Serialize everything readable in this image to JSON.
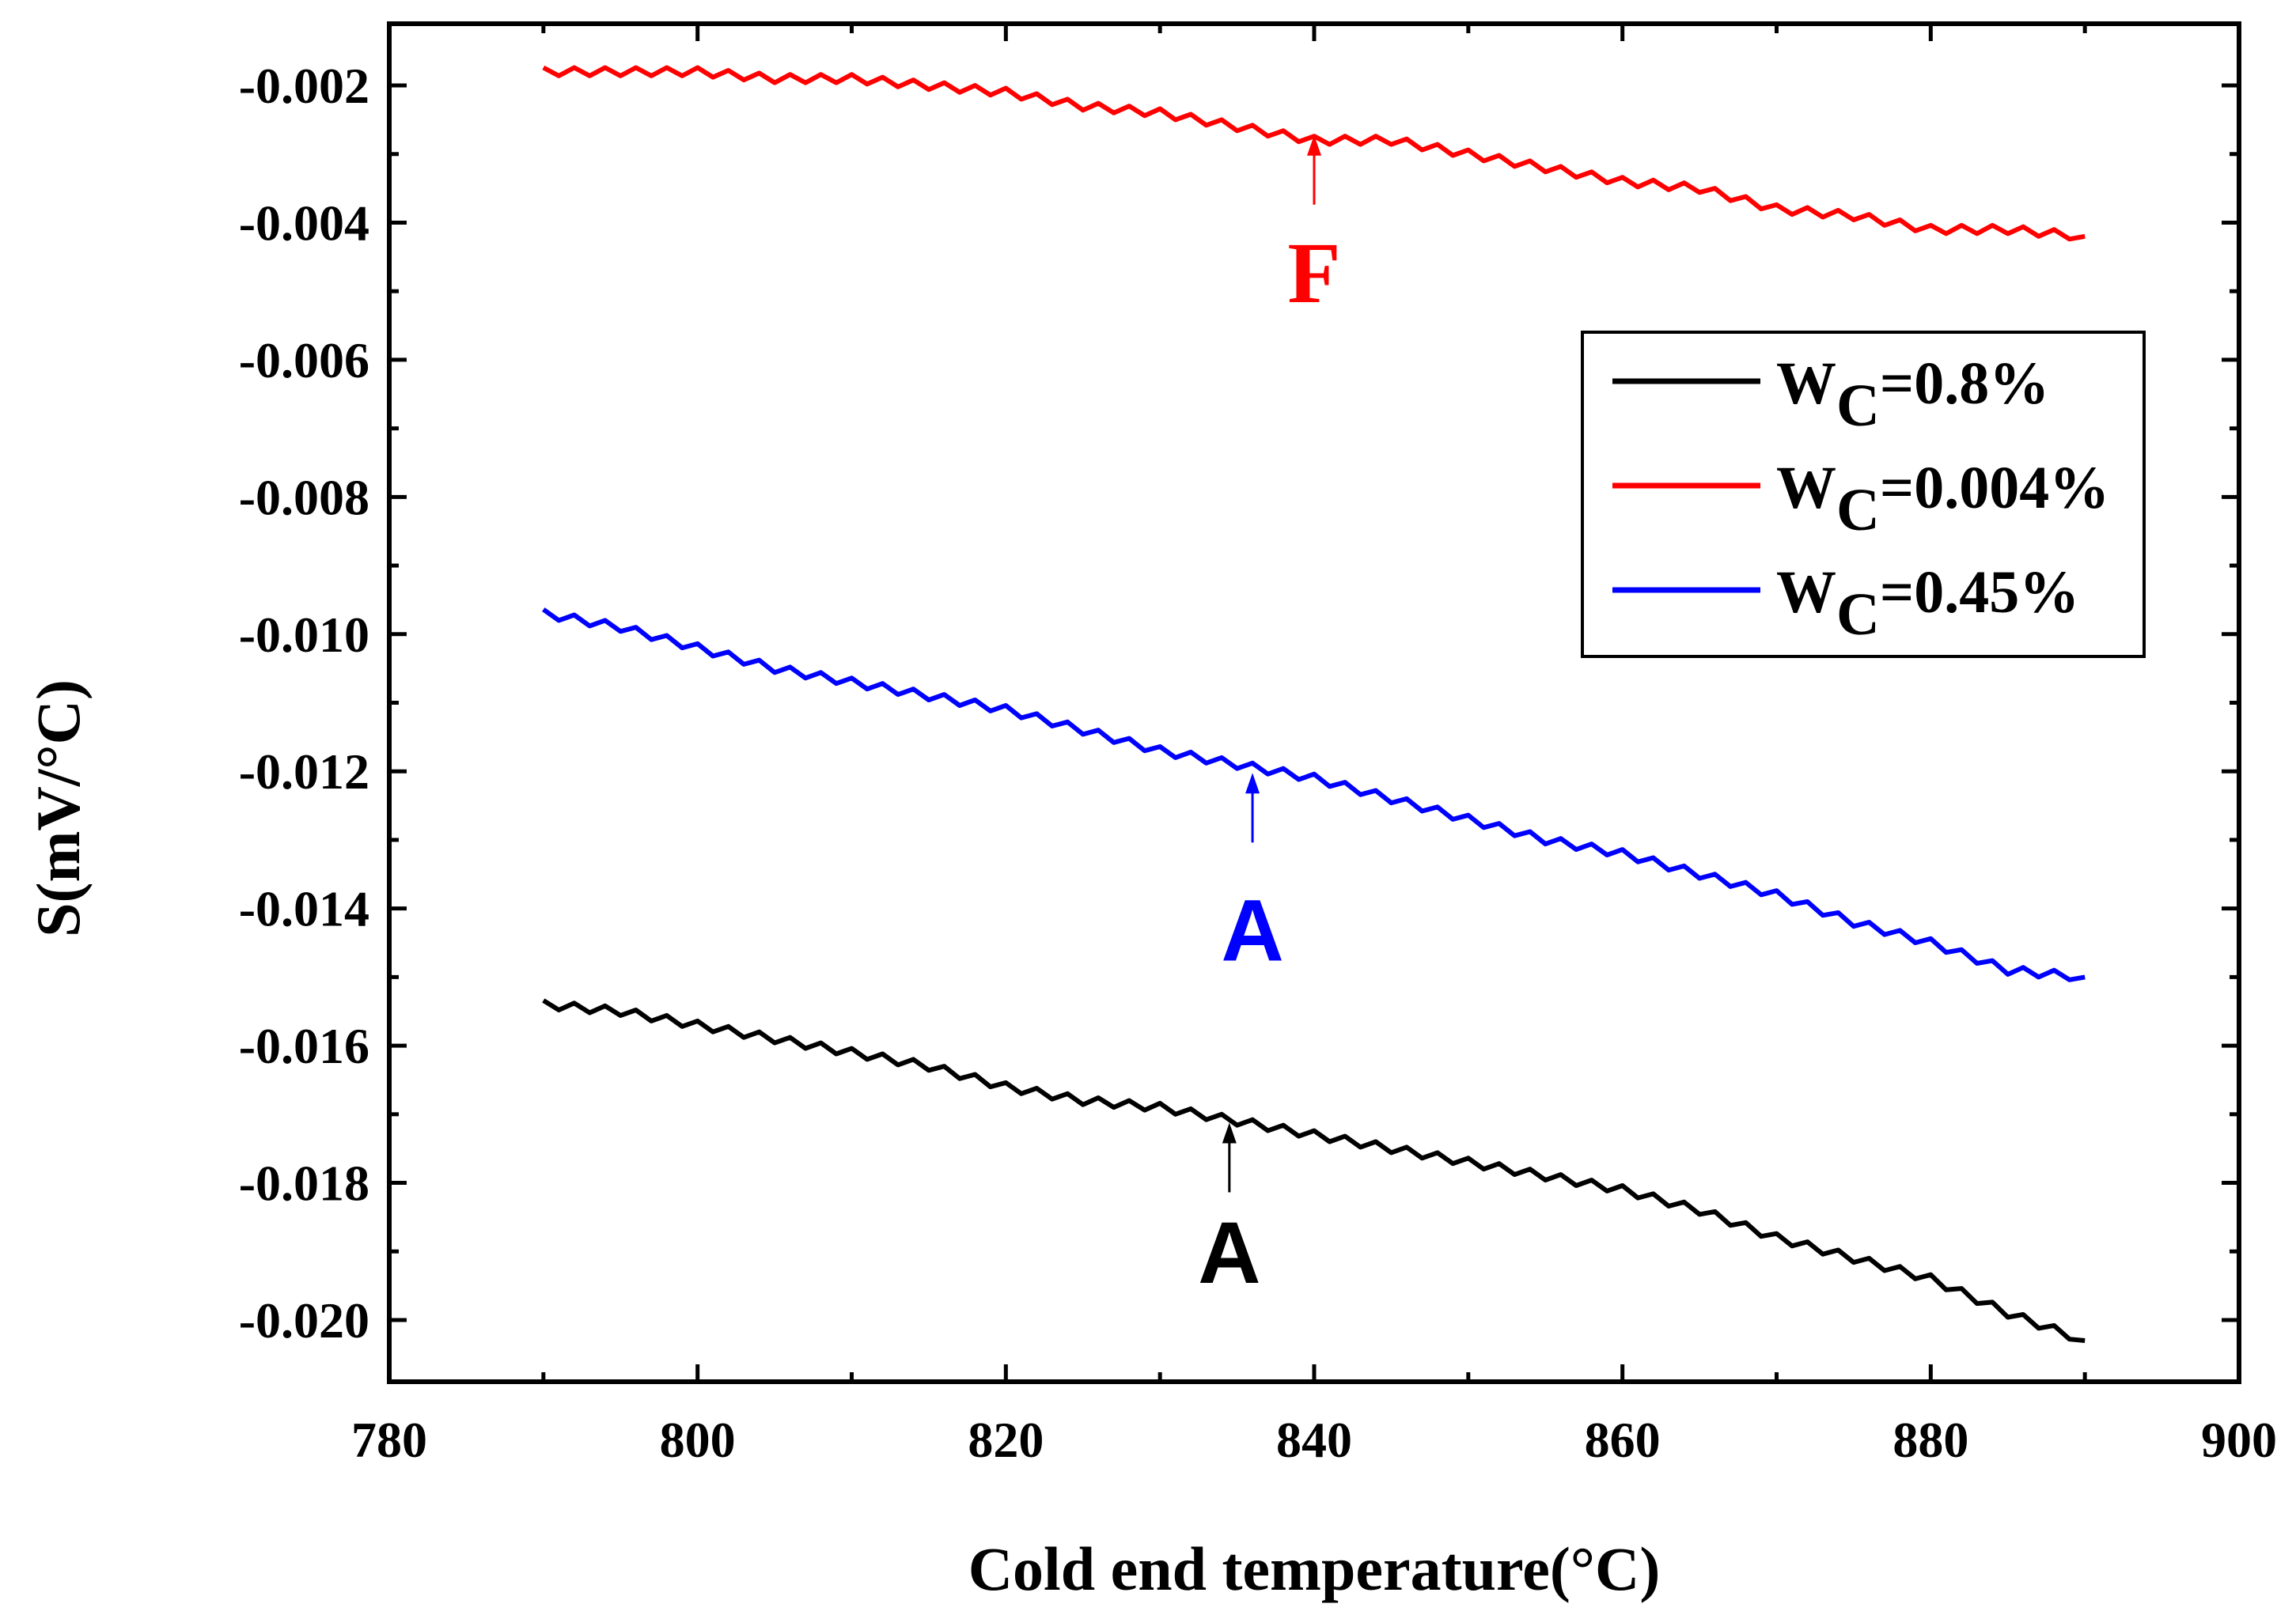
{
  "chart_data": {
    "type": "line",
    "xlabel": "Cold end temperature(°C)",
    "ylabel": "S(mV/°C)",
    "xlim": [
      780,
      900
    ],
    "ylim": [
      -0.0209,
      -0.0011
    ],
    "xticks": [
      780,
      800,
      820,
      840,
      860,
      880,
      900
    ],
    "xtick_labels": [
      "780",
      "800",
      "820",
      "840",
      "860",
      "880",
      "900"
    ],
    "yticks": [
      -0.002,
      -0.004,
      -0.006,
      -0.008,
      -0.01,
      -0.012,
      -0.014,
      -0.016,
      -0.018,
      -0.02
    ],
    "ytick_labels": [
      "-0.002",
      "-0.004",
      "-0.006",
      "-0.008",
      "-0.010",
      "-0.012",
      "-0.014",
      "-0.016",
      "-0.018",
      "-0.020"
    ],
    "legend_position": "upper-right",
    "series": [
      {
        "name": "WC=0.8%",
        "legend_main": "W",
        "legend_sub": "C",
        "legend_rest": "=0.8%",
        "color": "#000000",
        "x": [
          790,
          795,
          800,
          805,
          810,
          815,
          820,
          825,
          830,
          835,
          840,
          845,
          850,
          855,
          860,
          865,
          870,
          875,
          880,
          885,
          890
        ],
        "y": [
          -0.0154,
          -0.0155,
          -0.0157,
          -0.0159,
          -0.0161,
          -0.0163,
          -0.0166,
          -0.0168,
          -0.0169,
          -0.0171,
          -0.0173,
          -0.0175,
          -0.0177,
          -0.0179,
          -0.0181,
          -0.0184,
          -0.0188,
          -0.0191,
          -0.0194,
          -0.0199,
          -0.0203
        ]
      },
      {
        "name": "WC=0.004%",
        "legend_main": "W",
        "legend_sub": "C",
        "legend_rest": "=0.004%",
        "color": "#ff0000",
        "x": [
          790,
          795,
          800,
          805,
          810,
          815,
          820,
          825,
          830,
          835,
          840,
          845,
          850,
          855,
          860,
          865,
          870,
          875,
          880,
          885,
          890
        ],
        "y": [
          -0.0018,
          -0.0018,
          -0.0018,
          -0.0019,
          -0.0019,
          -0.002,
          -0.0021,
          -0.0023,
          -0.0024,
          -0.0026,
          -0.0028,
          -0.0028,
          -0.003,
          -0.0032,
          -0.0034,
          -0.0035,
          -0.0038,
          -0.0039,
          -0.0041,
          -0.0041,
          -0.0042
        ]
      },
      {
        "name": "WC=0.45%",
        "legend_main": "W",
        "legend_sub": "C",
        "legend_rest": "=0.45%",
        "color": "#0000ff",
        "x": [
          790,
          795,
          800,
          805,
          810,
          815,
          820,
          825,
          830,
          835,
          840,
          845,
          850,
          855,
          860,
          865,
          870,
          875,
          880,
          885,
          890
        ],
        "y": [
          -0.0097,
          -0.0099,
          -0.0102,
          -0.0105,
          -0.0107,
          -0.0109,
          -0.0111,
          -0.0114,
          -0.0117,
          -0.0119,
          -0.0121,
          -0.0124,
          -0.0127,
          -0.013,
          -0.0132,
          -0.0135,
          -0.0138,
          -0.0142,
          -0.0145,
          -0.0149,
          -0.015
        ]
      }
    ],
    "annotations": [
      {
        "text": "F",
        "color": "#ff0000",
        "x": 840,
        "y": -0.0027,
        "label_y": -0.0047
      },
      {
        "text": "A",
        "color": "#0000ff",
        "x": 836,
        "y": -0.012,
        "label_y": -0.0143
      },
      {
        "text": "A",
        "color": "#000000",
        "x": 834.5,
        "y": -0.0171,
        "label_y": -0.019
      }
    ]
  }
}
